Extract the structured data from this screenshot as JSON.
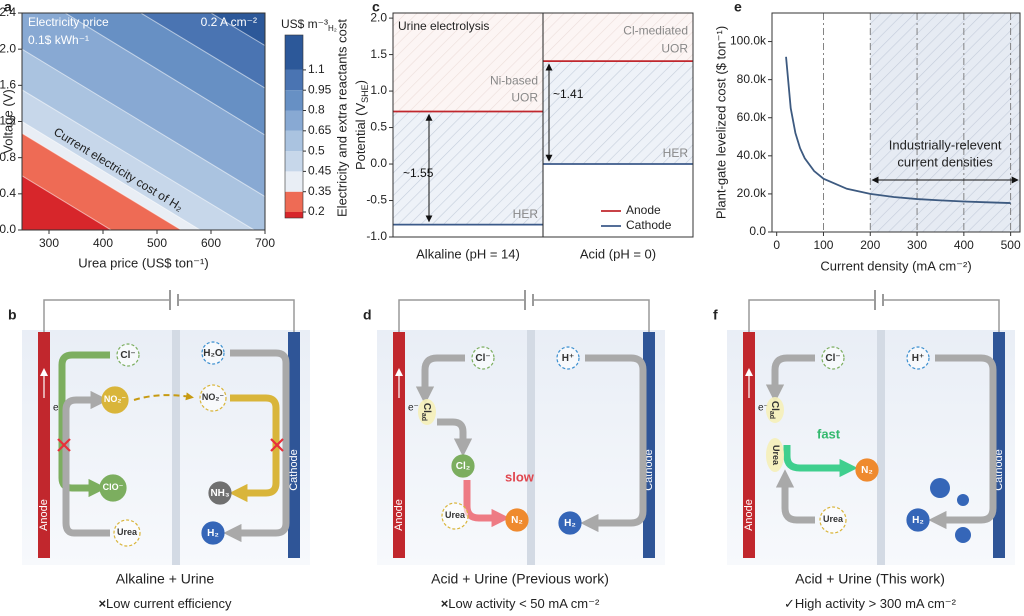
{
  "chart_data": [
    {
      "label": "a",
      "type": "contour",
      "xlabel": "Urea price (US$ ton⁻¹)",
      "ylabel": "Voltage (V)",
      "xlim": [
        250,
        700
      ],
      "xticks": [
        300,
        400,
        500,
        600,
        700
      ],
      "ylim": [
        0,
        2.4
      ],
      "yticks": [
        {
          "value": 0,
          "label": "0.0"
        },
        0.4,
        0.8,
        1.2,
        1.6,
        {
          "value": 2,
          "label": "2.0"
        },
        2.4
      ],
      "contours": [
        {
          "x": [
            250,
            415
          ],
          "y": [
            0.6,
            0
          ]
        },
        {
          "x": [
            250,
            545
          ],
          "y": [
            1.07,
            0
          ]
        },
        {
          "x": [
            250,
            580
          ],
          "y": [
            1.2,
            0
          ]
        },
        {
          "x": [
            250,
            680
          ],
          "y": [
            1.55,
            0
          ]
        },
        {
          "x": [
            250,
            700
          ],
          "y": [
            2.0,
            0.37
          ]
        },
        {
          "x": [
            330,
            700
          ],
          "y": [
            2.4,
            1.05
          ]
        },
        {
          "x": [
            470,
            700
          ],
          "y": [
            2.4,
            1.57
          ]
        },
        {
          "x": [
            600,
            700
          ],
          "y": [
            2.4,
            2.04
          ]
        }
      ],
      "colors": [
        "#d7262b",
        "#ee6b55",
        "#e9eef5",
        "#c7d7ea",
        "#aac3e0",
        "#88a9d3",
        "#6790c4",
        "#4a74b2",
        "#2c5899"
      ],
      "colorbar": {
        "title": "US$ m⁻³",
        "title_sub": "H₂",
        "label": "Electricity and extra reactants cost",
        "ticks": [
          0.2,
          0.35,
          0.45,
          0.5,
          0.65,
          0.8,
          0.95,
          1.1
        ]
      },
      "annotations": [
        "Electricity price",
        "0.1$ kWh⁻¹",
        "0.2 A cm⁻²",
        "Current electricity cost of H₂"
      ]
    },
    {
      "label": "c",
      "type": "step",
      "ylabel": [
        "Potential (V",
        "SHE",
        ")"
      ],
      "categories": [
        "Alkaline (pH = 14)",
        "Acid (pH = 0)"
      ],
      "series": [
        {
          "name": "Anode",
          "color": "#c0272d",
          "values": [
            0.72,
            1.41
          ]
        },
        {
          "name": "Cathode",
          "color": "#3b5a8a",
          "values": [
            -0.83,
            0.0
          ]
        }
      ],
      "ylim": [
        -1.0,
        2.07
      ],
      "yticks": [
        {
          "value": -1,
          "label": "-1.0"
        },
        -0.5,
        {
          "value": 0,
          "label": "0.0"
        },
        0.5,
        {
          "value": 1,
          "label": "1.0"
        },
        1.5,
        {
          "value": 2,
          "label": "2.0"
        }
      ],
      "legend": "lower right",
      "annotations": [
        "Urine electrolysis",
        "Ni-based",
        "UOR",
        "HER",
        "Cl-mediated",
        "UOR",
        "HER",
        "~1.55",
        "~1.41"
      ]
    },
    {
      "label": "e",
      "type": "line",
      "xlabel": "Current density (mA cm⁻²)",
      "ylabel": "Plant-gate levelized cost ($ ton⁻¹)",
      "x": [
        20,
        30,
        40,
        50,
        60,
        80,
        100,
        150,
        200,
        250,
        300,
        350,
        400,
        450,
        500
      ],
      "values": [
        92000,
        65000,
        52000,
        44000,
        38700,
        32000,
        28000,
        22700,
        20000,
        18400,
        17300,
        16600,
        16000,
        15600,
        15200
      ],
      "color": "#3d5a80",
      "xlim": [
        -10,
        520
      ],
      "xticks": [
        0,
        100,
        200,
        300,
        400,
        500
      ],
      "ylim": [
        0,
        115000
      ],
      "yticks": [
        {
          "value": 0,
          "label": "0.0"
        },
        {
          "value": 20000,
          "label": "20.0k"
        },
        {
          "value": 40000,
          "label": "40.0k"
        },
        {
          "value": 60000,
          "label": "60.0k"
        },
        {
          "value": 80000,
          "label": "80.0k"
        },
        {
          "value": 100000,
          "label": "100.0k"
        }
      ],
      "vlines": [
        100,
        200,
        300,
        400,
        500
      ],
      "shaded_from": 200,
      "annotations": [
        "Industrially-relevent",
        "current densities"
      ]
    }
  ],
  "diagrams": [
    {
      "label": "b",
      "caption": "Alkaline + Urine",
      "note_mark": "×",
      "note": "Low current efficiency",
      "anode": "Anode",
      "cathode": "Cathode",
      "electron": "e⁻",
      "species": [
        {
          "text": "Cl⁻"
        },
        {
          "text": "NO₂⁻"
        },
        {
          "text": "H₂O"
        },
        {
          "text": "NO₂⁻"
        },
        {
          "text": "ClO⁻"
        },
        {
          "text": "NH₃"
        },
        {
          "text": "Urea"
        },
        {
          "text": "H₂"
        }
      ]
    },
    {
      "label": "d",
      "caption": "Acid + Urine (Previous work)",
      "note_mark": "×",
      "note": "Low activity < 50 mA cm⁻²",
      "anode": "Anode",
      "cathode": "Cathode",
      "electron": "e⁻",
      "keyword": "slow",
      "species": [
        {
          "text": "Cl⁻"
        },
        {
          "text": "H⁺"
        },
        {
          "text": "Cl",
          "sub": "ad"
        },
        {
          "text": "Cl₂"
        },
        {
          "text": "Urea"
        },
        {
          "text": "N₂"
        },
        {
          "text": "H₂"
        }
      ]
    },
    {
      "label": "f",
      "caption": "Acid + Urine (This work)",
      "note_mark": "✓",
      "note": "High activity > 300 mA cm⁻²",
      "anode": "Anode",
      "cathode": "Cathode",
      "electron": "e⁻",
      "keyword": "fast",
      "species": [
        {
          "text": "Cl⁻"
        },
        {
          "text": "H⁺"
        },
        {
          "text": "Cl",
          "sub": "ad"
        },
        {
          "text": "Urea"
        },
        {
          "text": "N₂"
        },
        {
          "text": "Urea"
        },
        {
          "text": "H₂"
        }
      ]
    }
  ]
}
